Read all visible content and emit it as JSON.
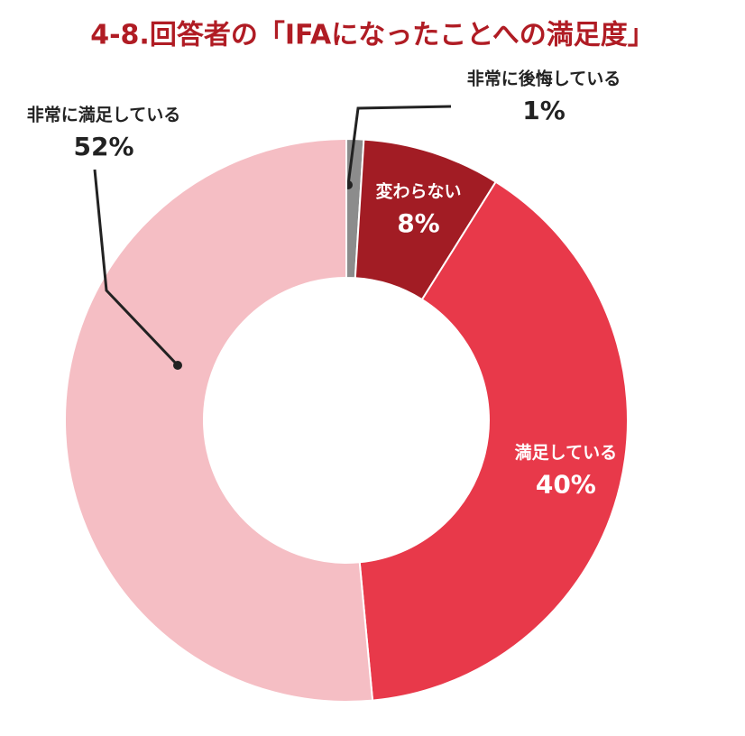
{
  "chart_data": {
    "type": "donut",
    "title": "4-8.回答者の「IFAになったことへの満足度」",
    "categories": [
      "非常に後悔している",
      "変わらない",
      "満足している",
      "非常に満足している"
    ],
    "values": [
      1,
      8,
      40,
      52
    ],
    "value_labels": [
      "1%",
      "8%",
      "40%",
      "52%"
    ],
    "colors": [
      "#8c8c8c",
      "#a21c24",
      "#e8394a",
      "#f5bec4"
    ]
  }
}
